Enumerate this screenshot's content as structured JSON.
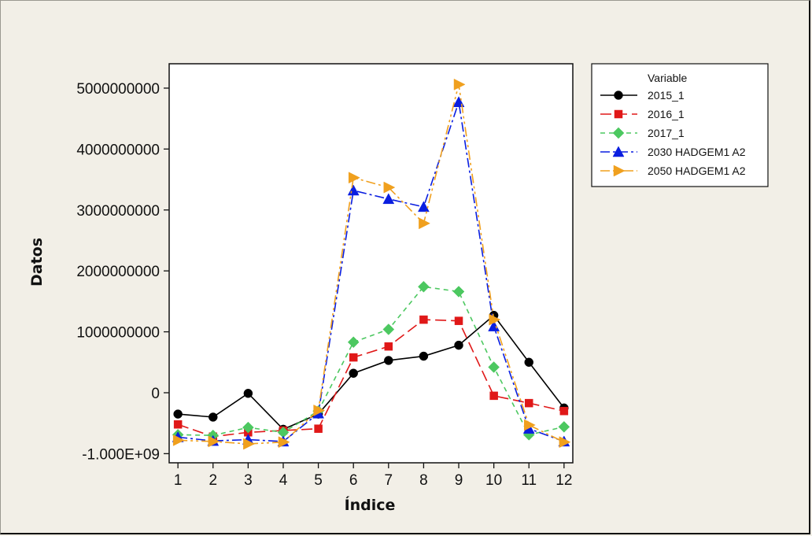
{
  "chart_data": {
    "type": "line",
    "title": "",
    "xlabel": "Índice",
    "ylabel": "Datos",
    "x": [
      1,
      2,
      3,
      4,
      5,
      6,
      7,
      8,
      9,
      10,
      11,
      12
    ],
    "xlim": [
      0.75,
      12.25
    ],
    "ylim": [
      -1150000000,
      5400000000
    ],
    "yticks": [
      {
        "value": 5000000000,
        "label": "5000000000"
      },
      {
        "value": 4000000000,
        "label": "4000000000"
      },
      {
        "value": 3000000000,
        "label": "3000000000"
      },
      {
        "value": 2000000000,
        "label": "2000000000"
      },
      {
        "value": 1000000000,
        "label": "1000000000"
      },
      {
        "value": 0,
        "label": "0"
      },
      {
        "value": -1000000000,
        "label": "-1.000E+09"
      }
    ],
    "xticks": [
      "1",
      "2",
      "3",
      "4",
      "5",
      "6",
      "7",
      "8",
      "9",
      "10",
      "11",
      "12"
    ],
    "grid": false,
    "legend_title": "Variable",
    "legend_placement": "top-right",
    "series": [
      {
        "name": "2015_1",
        "color": "#000000",
        "marker": "circle",
        "dash": "",
        "values": [
          -350000000,
          -400000000,
          -10000000,
          -600000000,
          -350000000,
          320000000,
          530000000,
          600000000,
          780000000,
          1270000000,
          500000000,
          -250000000
        ]
      },
      {
        "name": "2016_1",
        "color": "#e01818",
        "marker": "square",
        "dash": "14,6",
        "values": [
          -520000000,
          -720000000,
          -650000000,
          -620000000,
          -590000000,
          580000000,
          760000000,
          1200000000,
          1180000000,
          -50000000,
          -170000000,
          -300000000
        ]
      },
      {
        "name": "2017_1",
        "color": "#4cc860",
        "marker": "diamond",
        "dash": "6,5",
        "values": [
          -690000000,
          -700000000,
          -570000000,
          -650000000,
          -300000000,
          830000000,
          1040000000,
          1740000000,
          1660000000,
          420000000,
          -690000000,
          -560000000
        ]
      },
      {
        "name": "2030 HADGEM1 A2",
        "color": "#0a1ee0",
        "marker": "triangle-up",
        "dash": "12,4,3,4",
        "values": [
          -730000000,
          -790000000,
          -770000000,
          -800000000,
          -340000000,
          3320000000,
          3180000000,
          3050000000,
          4770000000,
          1090000000,
          -590000000,
          -800000000
        ]
      },
      {
        "name": "2050 HADGEM1 A2",
        "color": "#f0a01e",
        "marker": "triangle-right",
        "dash": "12,4,3,4,3,4",
        "values": [
          -780000000,
          -800000000,
          -840000000,
          -810000000,
          -290000000,
          3530000000,
          3370000000,
          2780000000,
          5060000000,
          1200000000,
          -530000000,
          -810000000
        ]
      }
    ]
  }
}
